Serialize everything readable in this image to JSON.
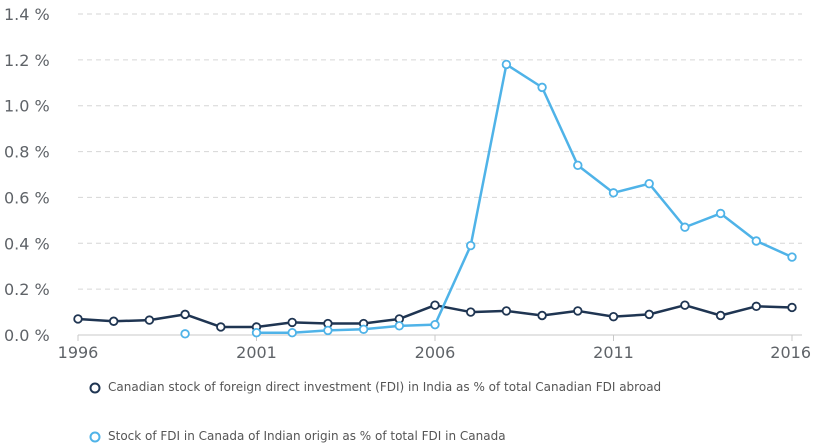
{
  "chart_data": {
    "type": "line",
    "x": [
      1996,
      1997,
      1998,
      1999,
      2000,
      2001,
      2002,
      2003,
      2004,
      2005,
      2006,
      2007,
      2008,
      2009,
      2010,
      2011,
      2012,
      2013,
      2014,
      2015,
      2016
    ],
    "xticks": [
      1996,
      2001,
      2006,
      2011,
      2016
    ],
    "xtick_labels": [
      "1996",
      "2001",
      "2006",
      "2011",
      "2016"
    ],
    "xlim": [
      1996,
      2016
    ],
    "ylim": [
      0,
      1.4
    ],
    "yticks": [
      0,
      0.2,
      0.4,
      0.6,
      0.8,
      1.0,
      1.2,
      1.4
    ],
    "ytick_labels": [
      "0.0 %",
      "0.2 %",
      "0.4 %",
      "0.6 %",
      "0.8 %",
      "1.0 %",
      "1.2 %",
      "1.4 %"
    ],
    "grid": true,
    "legend_position": "bottom",
    "series": [
      {
        "name": "Canadian stock of foreign direct investment (FDI) in India as % of total Canadian FDI abroad",
        "color": "#1f3552",
        "values": [
          0.07,
          0.06,
          0.065,
          0.09,
          0.035,
          0.035,
          0.055,
          0.05,
          0.05,
          0.07,
          0.13,
          0.1,
          0.105,
          0.085,
          0.105,
          0.08,
          0.09,
          0.13,
          0.085,
          0.125,
          0.12
        ]
      },
      {
        "name": "Stock of FDI in Canada of Indian origin as % of total FDI in Canada",
        "color": "#4fb3e8",
        "values": [
          null,
          null,
          null,
          0.005,
          null,
          0.01,
          0.01,
          0.02,
          0.025,
          0.04,
          0.045,
          0.39,
          1.18,
          1.08,
          0.74,
          0.62,
          0.66,
          0.47,
          0.53,
          0.41,
          0.34
        ]
      }
    ]
  }
}
